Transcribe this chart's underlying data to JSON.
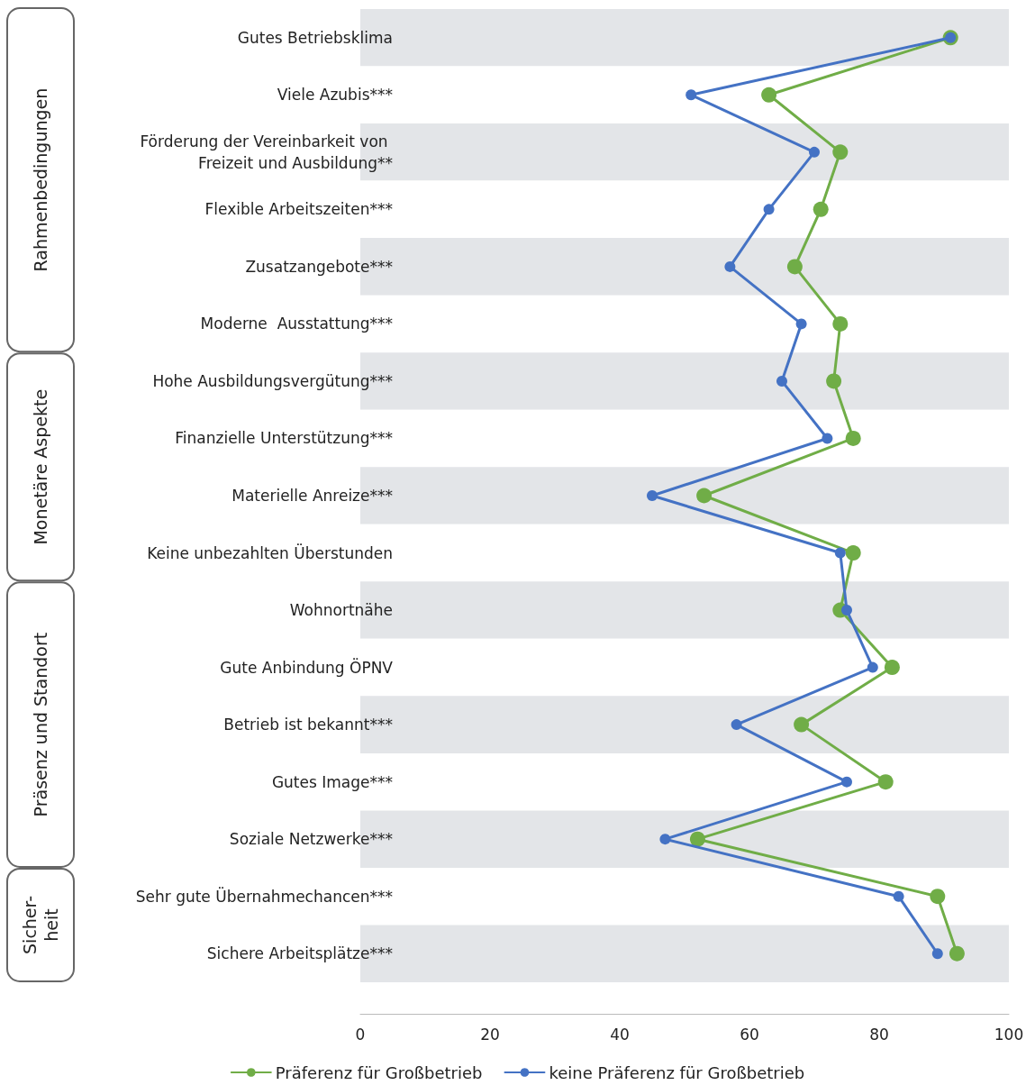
{
  "chart_data": {
    "type": "line",
    "orientation": "horizontal",
    "categories": [
      "Gutes Betriebsklima",
      "Viele Azubis***",
      "Förderung der Vereinbarkeit von Freizeit und Ausbildung**",
      "Flexible Arbeitszeiten***",
      "Zusatzangebote***",
      "Moderne  Ausstattung***",
      "Hohe Ausbildungsvergütung***",
      "Finanzielle Unterstützung***",
      "Materielle Anreize***",
      "Keine unbezahlten Überstunden",
      "Wohnortnähe",
      "Gute Anbindung ÖPNV",
      "Betrieb ist bekannt***",
      "Gutes Image***",
      "Soziale Netzwerke***",
      "Sehr gute Übernahmechancen***",
      "Sichere Arbeitsplätze***"
    ],
    "series": [
      {
        "name": "Präferenz für Großbetrieb",
        "color": "#70ad47",
        "values": [
          91,
          63,
          74,
          71,
          67,
          74,
          73,
          76,
          53,
          76,
          74,
          82,
          68,
          81,
          52,
          89,
          92
        ]
      },
      {
        "name": "keine Präferenz für Großbetrieb",
        "color": "#4472c4",
        "values": [
          91,
          51,
          70,
          63,
          57,
          68,
          65,
          72,
          45,
          74,
          75,
          79,
          58,
          75,
          47,
          83,
          89
        ]
      }
    ],
    "annotations": [
      "Rahmenbedingungen",
      "Monetäre Aspekte",
      "Präsenz und Standort",
      "Sicher-\nheit"
    ],
    "xlim": [
      0,
      100
    ],
    "xticks": [
      0,
      20,
      40,
      60,
      80,
      100
    ],
    "marker": "circle",
    "line_style": "solid",
    "legend": "bottom",
    "grid": false
  }
}
